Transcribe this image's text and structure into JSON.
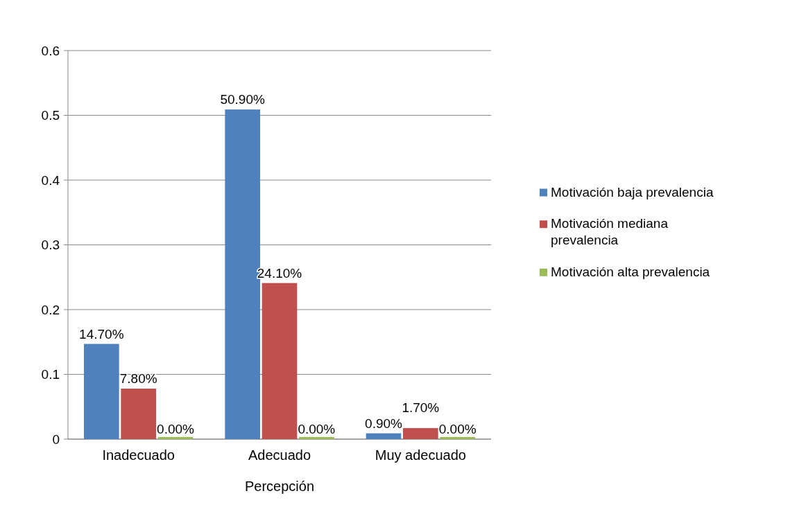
{
  "chart_data": {
    "type": "bar",
    "xlabel": "Percepción",
    "categories": [
      "Inadecuado",
      "Adecuado",
      "Muy adecuado"
    ],
    "series": [
      {
        "name": "Motivación baja prevalencia",
        "color": "#4f81bd",
        "values": [
          0.147,
          0.509,
          0.009
        ],
        "value_labels": [
          "14.70%",
          "50.90%",
          "0.90%"
        ]
      },
      {
        "name": "Motivación mediana prevalencia",
        "color": "#c0504d",
        "values": [
          0.078,
          0.241,
          0.017
        ],
        "value_labels": [
          "7.80%",
          "24.10%",
          "1.70%"
        ]
      },
      {
        "name": "Motivación alta prevalencia",
        "color": "#9bbb59",
        "values": [
          0,
          0,
          0
        ],
        "value_labels": [
          "0.00%",
          "0.00%",
          "0.00%"
        ]
      }
    ],
    "ylim": [
      0,
      0.6
    ],
    "yticks": [
      0,
      0.1,
      0.2,
      0.3,
      0.4,
      0.5,
      0.6
    ],
    "grid": "y",
    "legend": "right"
  }
}
